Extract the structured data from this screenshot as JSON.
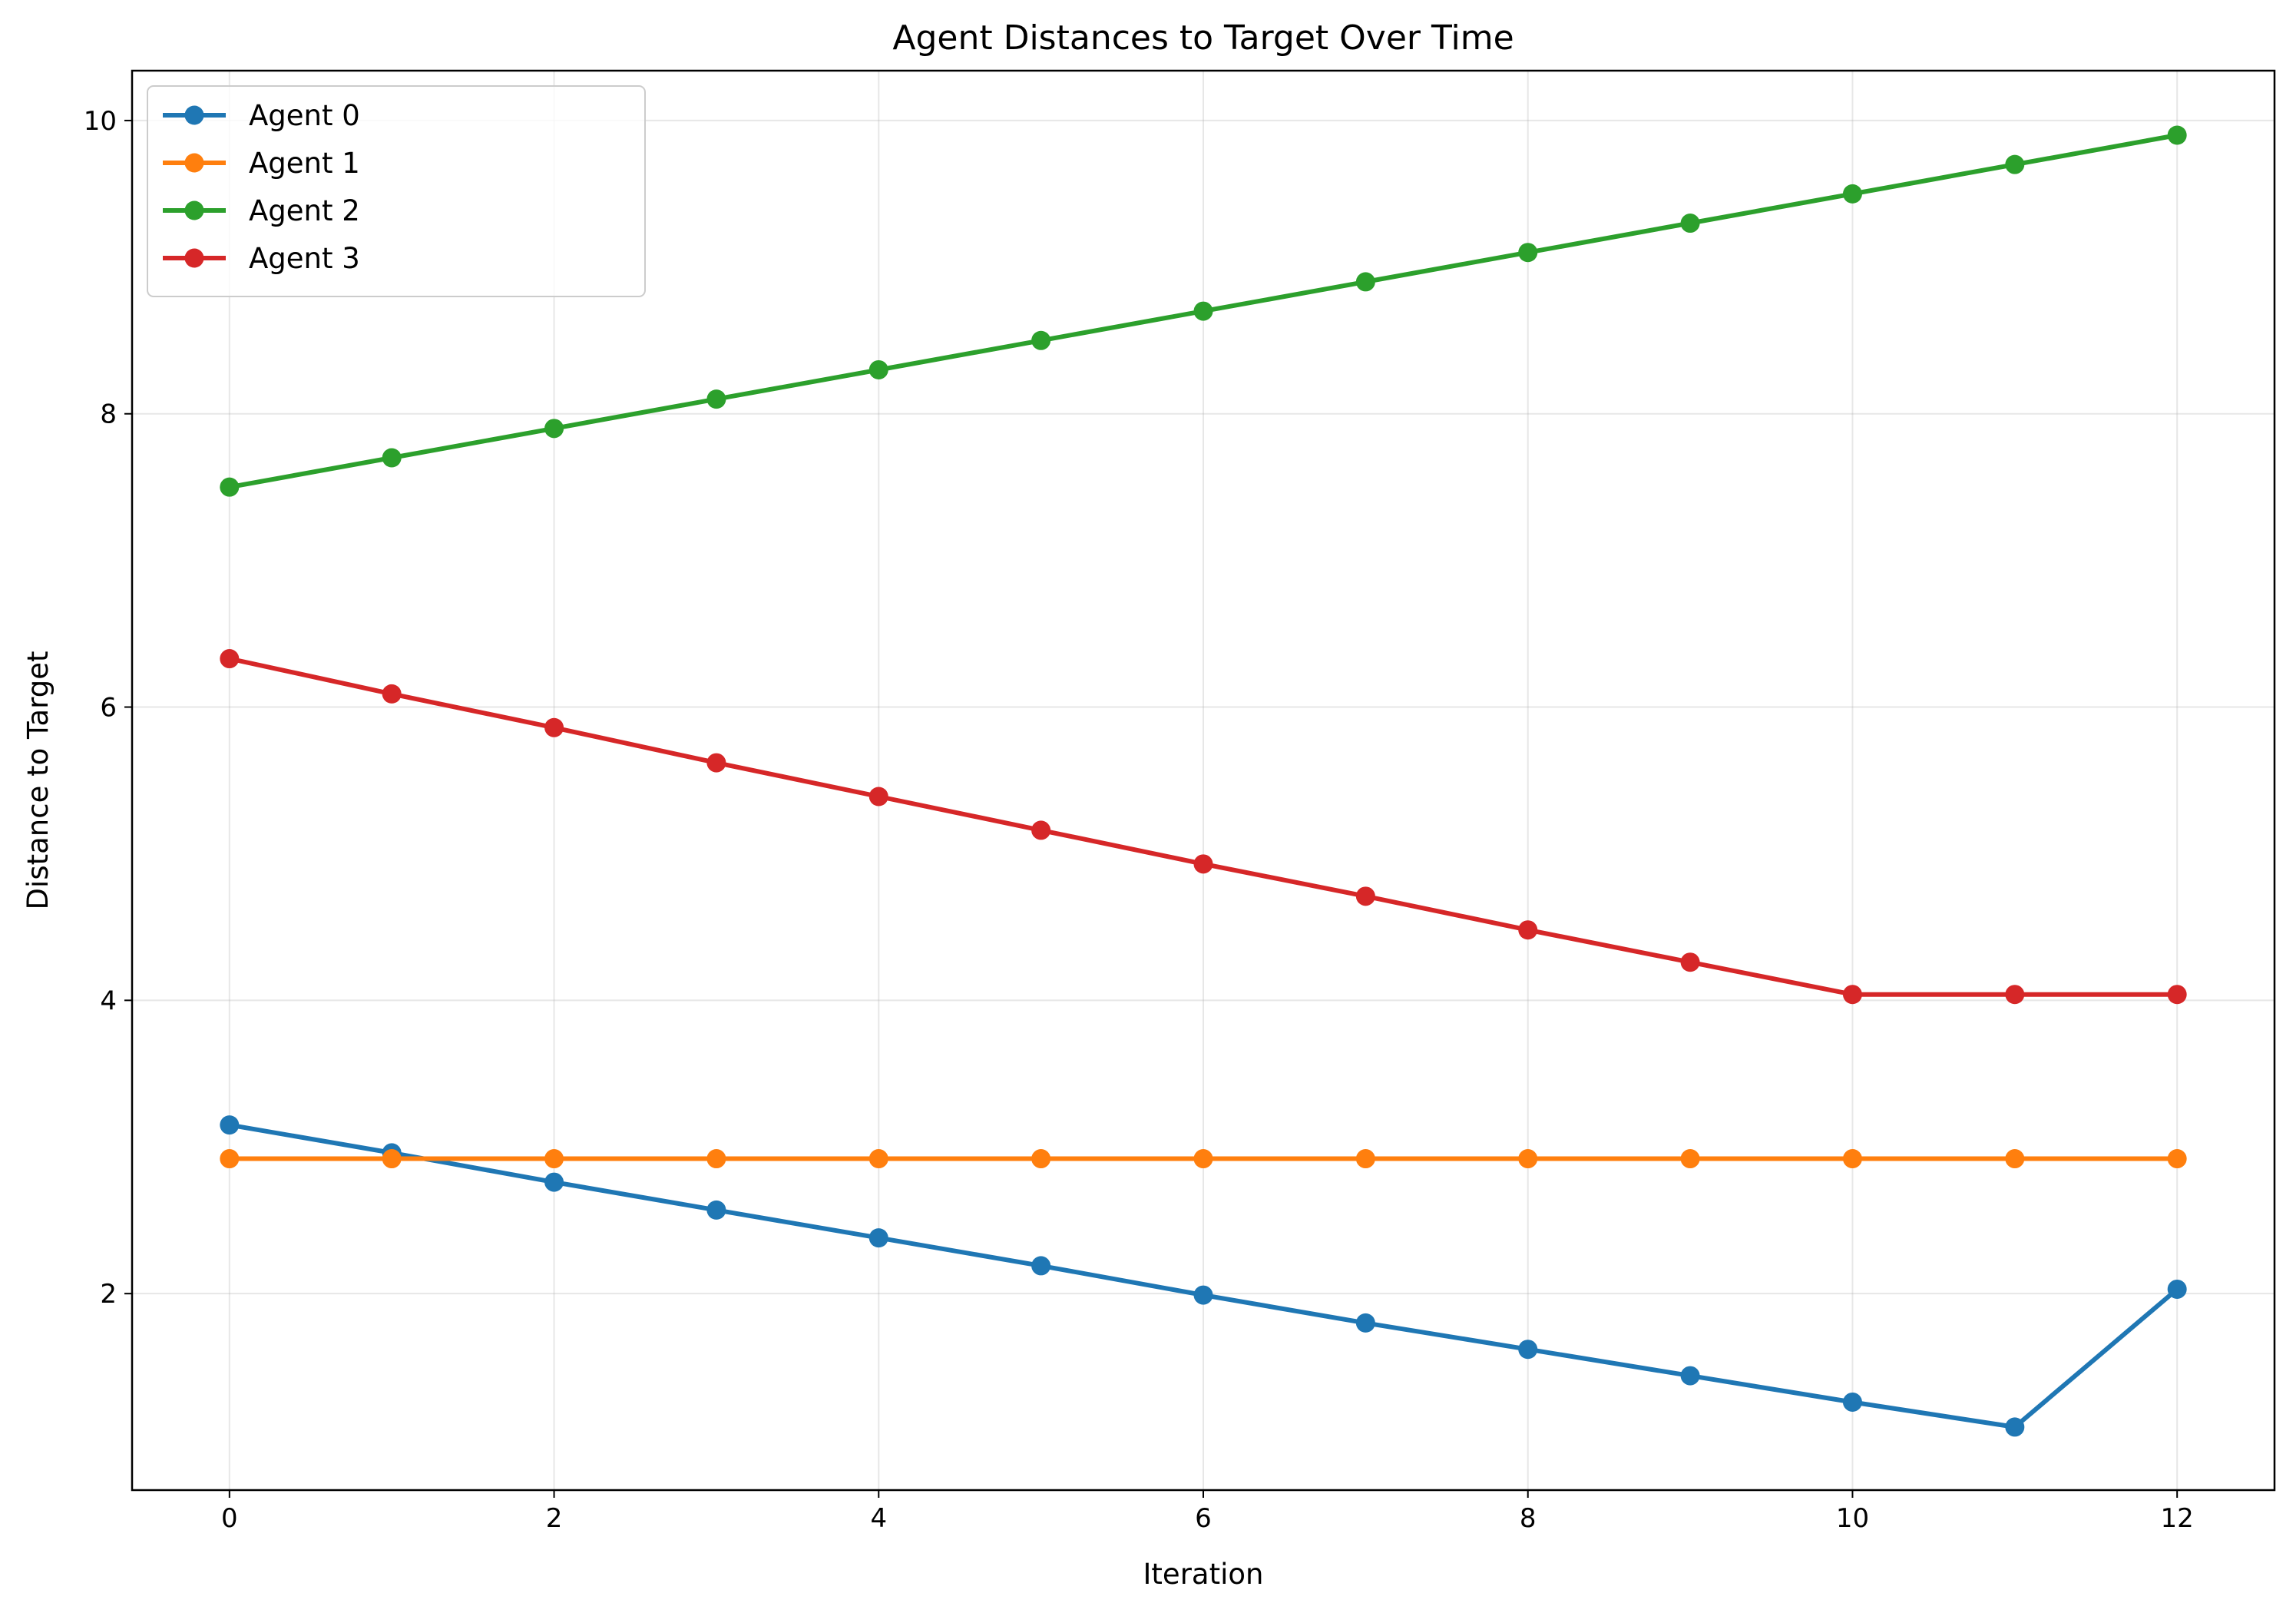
{
  "chart_data": {
    "type": "line",
    "title": "Agent Distances to Target Over Time",
    "xlabel": "Iteration",
    "ylabel": "Distance to Target",
    "x": [
      0,
      1,
      2,
      3,
      4,
      5,
      6,
      7,
      8,
      9,
      10,
      11,
      12
    ],
    "xlim": [
      -0.6,
      12.6
    ],
    "ylim": [
      0.66,
      10.34
    ],
    "xticks": [
      0,
      2,
      4,
      6,
      8,
      10,
      12
    ],
    "yticks": [
      2,
      4,
      6,
      8,
      10
    ],
    "grid": true,
    "legend_position": "top-left",
    "series": [
      {
        "name": "Agent 0",
        "color": "#1f77b4",
        "values": [
          3.15,
          2.96,
          2.76,
          2.57,
          2.38,
          2.19,
          1.99,
          1.8,
          1.62,
          1.44,
          1.26,
          1.09,
          2.03
        ]
      },
      {
        "name": "Agent 1",
        "color": "#ff7f0e",
        "values": [
          2.92,
          2.92,
          2.92,
          2.92,
          2.92,
          2.92,
          2.92,
          2.92,
          2.92,
          2.92,
          2.92,
          2.92,
          2.92
        ]
      },
      {
        "name": "Agent 2",
        "color": "#2ca02c",
        "values": [
          7.5,
          7.7,
          7.9,
          8.1,
          8.3,
          8.5,
          8.7,
          8.9,
          9.1,
          9.3,
          9.5,
          9.7,
          9.9
        ]
      },
      {
        "name": "Agent 3",
        "color": "#d62728",
        "values": [
          6.33,
          6.09,
          5.86,
          5.62,
          5.39,
          5.16,
          4.93,
          4.71,
          4.48,
          4.26,
          4.04,
          4.04,
          4.04
        ]
      }
    ]
  }
}
